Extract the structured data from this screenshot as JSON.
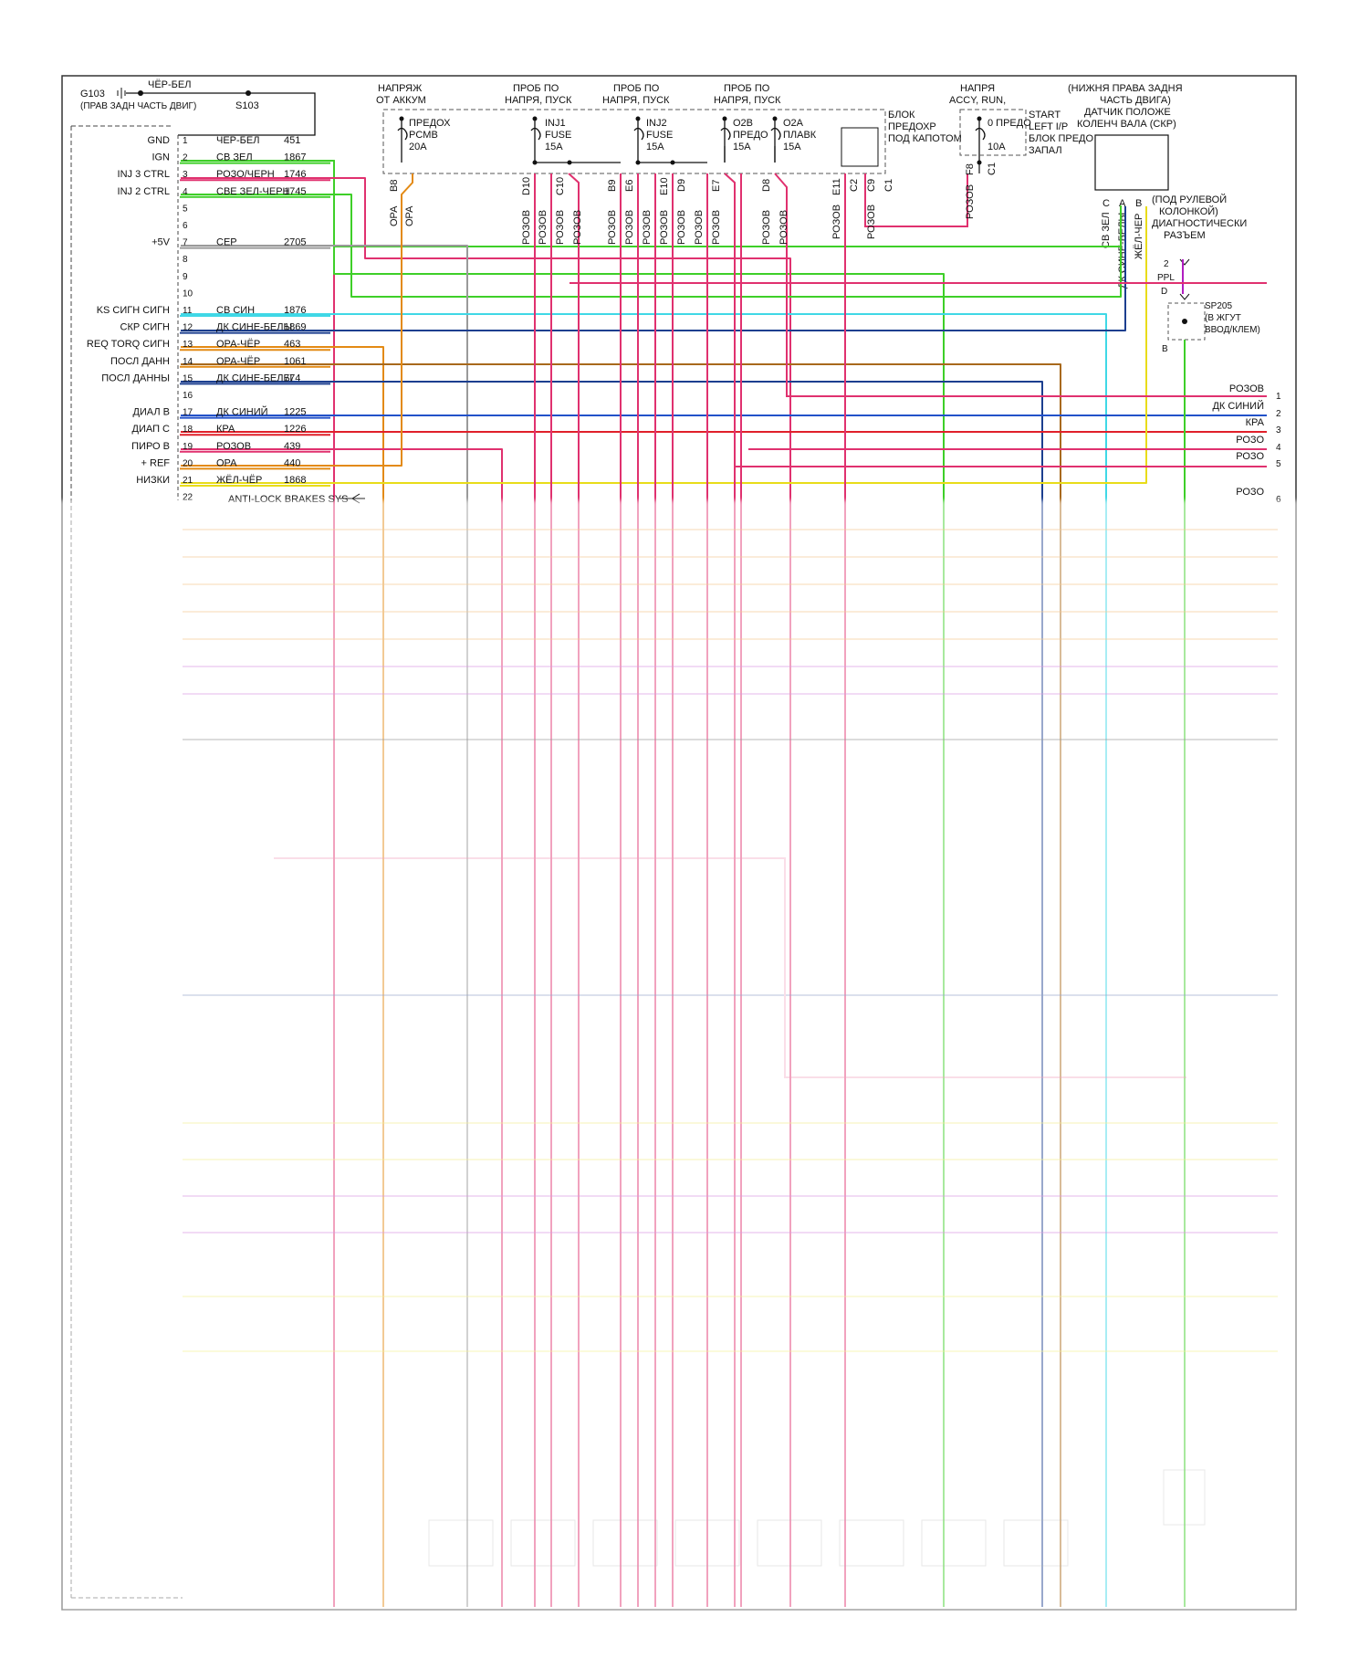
{
  "ground": {
    "id": "G103",
    "note": "(ПРАВ ЗАДН ЧАСТЬ ДВИГ)",
    "wire": "ЧЁР-БЕЛ",
    "splice": "S103"
  },
  "top_blocks": [
    {
      "l1": "НАПРЯЖ",
      "l2": "ОТ АККУМ"
    },
    {
      "l1": "ПРОБ ПО",
      "l2": "НАПРЯ, ПУСК"
    },
    {
      "l1": "ПРОБ ПО",
      "l2": "НАПРЯ, ПУСК"
    },
    {
      "l1": "ПРОБ ПО",
      "l2": "НАПРЯ, ПУСК"
    },
    {
      "l1": "НАПРЯ",
      "l2": "ACCY, RUN,"
    }
  ],
  "fuses": [
    {
      "l1": "ПРЕДОХ",
      "l2": "PCMB",
      "l3": "20A"
    },
    {
      "l1": "INJ1",
      "l2": "FUSE",
      "l3": "15A"
    },
    {
      "l1": "INJ2",
      "l2": "FUSE",
      "l3": "15A"
    },
    {
      "l1": "O2B",
      "l2": "ПРЕДО",
      "l3": "15A"
    },
    {
      "l1": "O2A",
      "l2": "ПЛАВК",
      "l3": "15A"
    },
    {
      "l1": "0 ПРЕДО",
      "l2": "",
      "l3": "10A"
    }
  ],
  "fuse_block": {
    "l1": "БЛОК",
    "l2": "ПРЕДОХР",
    "l3": "ПОД КАПОТОМ"
  },
  "ip_block": {
    "l1": "START",
    "l2": "LEFT I/P",
    "l3": "БЛОК ПРЕДО",
    "l4": "ЗАПАЛ"
  },
  "ckp_sensor": {
    "l1": "(НИЖНЯ ПРАВА ЗАДНЯ",
    "l2": "ЧАСТЬ ДВИГА)",
    "l3": "ДАТЧИК ПОЛОЖЕ",
    "l4": "КОЛЕНЧ ВАЛА (СКР)"
  },
  "dlc": {
    "l1": "(ПОД РУЛЕВОЙ",
    "l2": "КОЛОНКОЙ)",
    "l3": "ДИАГНОСТИЧЕСКИ",
    "l4": "РАЗЪЕМ"
  },
  "sp205": {
    "id": "SP205",
    "l1": "(В ЖГУТ",
    "l2": "ВВОД/КЛЕМ)",
    "pin_top": "2",
    "wire": "PPL",
    "pin_d": "D",
    "pin_b": "B"
  },
  "ckp_pins": [
    "C",
    "A",
    "B"
  ],
  "ckp_wires": [
    "СВ ЗЕЛ",
    "ДК СИНЕ-БЕЛЫ",
    "ЖЁЛ-ЧЕР"
  ],
  "col_labels": [
    {
      "pin": "B8",
      "wire": "ОРА"
    },
    {
      "pin": "",
      "wire": "ОРА"
    },
    {
      "pin": "D10",
      "wire": "РОЗОВ"
    },
    {
      "pin": "",
      "wire": "РОЗОВ"
    },
    {
      "pin": "C10",
      "wire": "РОЗОВ"
    },
    {
      "pin": "",
      "wire": "РОЗОВ"
    },
    {
      "pin": "B9",
      "wire": "РОЗОВ"
    },
    {
      "pin": "E6",
      "wire": "РОЗОВ"
    },
    {
      "pin": "E10",
      "wire": "РОЗОВ"
    },
    {
      "pin": "D9",
      "wire": "РОЗОВ"
    },
    {
      "pin": "E7",
      "wire": "РОЗОВ"
    },
    {
      "pin": "",
      "wire": "РОЗОВ"
    },
    {
      "pin": "D8",
      "wire": "РОЗОВ"
    },
    {
      "pin": "",
      "wire": "РОЗОВ"
    },
    {
      "pin": "E11",
      "wire": "РОЗОВ"
    },
    {
      "pin": "C2",
      "wire": "РОЗОВ"
    },
    {
      "pin": "C9",
      "wire": ""
    },
    {
      "pin": "C1",
      "wire": ""
    },
    {
      "pin": "F8",
      "wire": "РОЗОВ"
    },
    {
      "pin": "C1",
      "wire": ""
    }
  ],
  "pcm_rows": [
    {
      "pin": "1",
      "name": "GND",
      "wire": "ЧЁР-БЕЛ",
      "circuit": "451"
    },
    {
      "pin": "2",
      "name": "IGN",
      "wire": "СВ ЗЕЛ",
      "circuit": "1867"
    },
    {
      "pin": "3",
      "name": "INJ 3 CTRL",
      "wire": "РОЗО/ЧЕРН",
      "circuit": "1746"
    },
    {
      "pin": "4",
      "name": "INJ 2 CTRL",
      "wire": "СВЕ ЗЕЛ-ЧЕРН",
      "circuit": "1745"
    },
    {
      "pin": "5",
      "name": "",
      "wire": "",
      "circuit": ""
    },
    {
      "pin": "6",
      "name": "",
      "wire": "",
      "circuit": ""
    },
    {
      "pin": "7",
      "name": "+5V",
      "wire": "СЕР",
      "circuit": "2705"
    },
    {
      "pin": "8",
      "name": "",
      "wire": "",
      "circuit": ""
    },
    {
      "pin": "9",
      "name": "",
      "wire": "",
      "circuit": ""
    },
    {
      "pin": "10",
      "name": "",
      "wire": "",
      "circuit": ""
    },
    {
      "pin": "11",
      "name": "KS СИГН СИГН",
      "wire": "СВ СИН",
      "circuit": "1876"
    },
    {
      "pin": "12",
      "name": "СКР СИГН",
      "wire": "ДК СИНЕ-БЕЛЫ",
      "circuit": "1869"
    },
    {
      "pin": "13",
      "name": "REQ TORQ СИГН",
      "wire": "ОРА-ЧЁР",
      "circuit": "463"
    },
    {
      "pin": "14",
      "name": "ПОСЛ ДАНН",
      "wire": "ОРА-ЧЁР",
      "circuit": "1061"
    },
    {
      "pin": "15",
      "name": "ПОСЛ ДАННЫ",
      "wire": "ДК СИНЕ-БЕЛЫ",
      "circuit": "774"
    },
    {
      "pin": "16",
      "name": "",
      "wire": "",
      "circuit": ""
    },
    {
      "pin": "17",
      "name": "ДИАЛ В",
      "wire": "ДК СИНИЙ",
      "circuit": "1225"
    },
    {
      "pin": "18",
      "name": "ДИАП С",
      "wire": "КРА",
      "circuit": "1226"
    },
    {
      "pin": "19",
      "name": "ПИРО В",
      "wire": "РОЗОВ",
      "circuit": "439"
    },
    {
      "pin": "20",
      "name": "+ REF",
      "wire": "ОРА",
      "circuit": "440"
    },
    {
      "pin": "21",
      "name": "НИЗКИ",
      "wire": "ЖЁЛ-ЧЁР",
      "circuit": "1868"
    },
    {
      "pin": "22",
      "name": "",
      "wire": "",
      "circuit": ""
    }
  ],
  "abs_label": "ANTI-LOCK BRAKES SYS",
  "right_conn": [
    {
      "wire": "РОЗОВ",
      "pin": "1"
    },
    {
      "wire": "ДК СИНИЙ",
      "pin": "2"
    },
    {
      "wire": "КРА",
      "pin": "3"
    },
    {
      "wire": "РОЗО",
      "pin": "4"
    },
    {
      "wire": "РОЗО",
      "pin": "5"
    },
    {
      "wire": "РОЗО",
      "pin": "6"
    }
  ],
  "colors": {
    "pink": "#e0316f",
    "green": "#3ecf28",
    "orange": "#e38a14",
    "gray": "#9a9a9a",
    "cyan": "#3fd8e6",
    "navy": "#1c3f8f",
    "blue": "#2251c9",
    "red": "#e0202a",
    "yellow": "#e8dc1a",
    "brown": "#a8691c",
    "black": "#222222",
    "purple": "#b01ec0"
  }
}
